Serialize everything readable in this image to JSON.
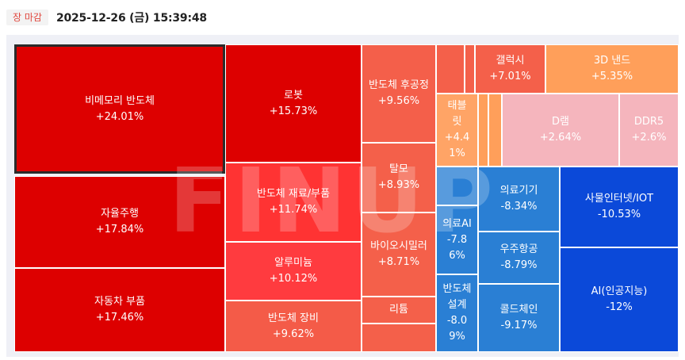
{
  "header": {
    "status_badge": "장 마감",
    "timestamp": "2025-12-26 (금) 15:39:48"
  },
  "watermark": "FINUP",
  "chart_data": {
    "type": "treemap",
    "tiles": [
      {
        "label": "비메모리 반도체",
        "value_text": "+24.01%",
        "change": 24.01,
        "color": "#dd0000",
        "selected": true
      },
      {
        "label": "자율주행",
        "value_text": "+17.84%",
        "change": 17.84,
        "color": "#dd0000"
      },
      {
        "label": "자동차 부품",
        "value_text": "+17.46%",
        "change": 17.46,
        "color": "#dd0000"
      },
      {
        "label": "로봇",
        "value_text": "+15.73%",
        "change": 15.73,
        "color": "#dd0000"
      },
      {
        "label": "반도체 재료/부품",
        "value_text": "+11.74%",
        "change": 11.74,
        "color": "#ff3333"
      },
      {
        "label": "알루미늄",
        "value_text": "+10.12%",
        "change": 10.12,
        "color": "#ff3b3f"
      },
      {
        "label": "반도체 장비",
        "value_text": "+9.62%",
        "change": 9.62,
        "color": "#f45b48"
      },
      {
        "label": "반도체 후공정",
        "value_text": "+9.56%",
        "change": 9.56,
        "color": "#f45f4a"
      },
      {
        "label": "탈모",
        "value_text": "+8.93%",
        "change": 8.93,
        "color": "#f4604a"
      },
      {
        "label": "바이오시밀러",
        "value_text": "+8.71%",
        "change": 8.71,
        "color": "#f4604a"
      },
      {
        "label": "리튬",
        "value_text": "",
        "color": "#f4604a"
      },
      {
        "label": "",
        "value_text": "",
        "color": "#f4604a"
      },
      {
        "label": "",
        "value_text": "",
        "color": "#f4604a"
      },
      {
        "label": "",
        "value_text": "",
        "color": "#f4604a"
      },
      {
        "label": "",
        "value_text": "",
        "color": "#f4604a"
      },
      {
        "label": "갤럭시",
        "value_text": "+7.01%",
        "change": 7.01,
        "color": "#f4604a"
      },
      {
        "label": "3D 낸드",
        "value_text": "+5.35%",
        "change": 5.35,
        "color": "#ff9f5a"
      },
      {
        "label": "태블\n릿",
        "value_text": "+4.4\n1%",
        "change": 4.41,
        "color": "#ffa466"
      },
      {
        "label": "",
        "value_text": "",
        "color": "#ff9f5a"
      },
      {
        "label": "",
        "value_text": "",
        "color": "#ff9f5a"
      },
      {
        "label": "D램",
        "value_text": "+2.64%",
        "change": 2.64,
        "color": "#f5b5bd"
      },
      {
        "label": "DDR5",
        "value_text": "+2.6%",
        "change": 2.6,
        "color": "#f5b5bd"
      },
      {
        "label": "",
        "value_text": "",
        "color": "#2a7fd4"
      },
      {
        "label": "",
        "value_text": "",
        "color": "#2a7fd4"
      },
      {
        "label": "의료AI",
        "value_text": "-7.8\n6%",
        "change": -7.86,
        "color": "#2a7fd4"
      },
      {
        "label": "반도체\n설계",
        "value_text": "-8.0\n9%",
        "change": -8.09,
        "color": "#2a7fd4"
      },
      {
        "label": "의료기기",
        "value_text": "-8.34%",
        "change": -8.34,
        "color": "#2a7fd4"
      },
      {
        "label": "우주항공",
        "value_text": "-8.79%",
        "change": -8.79,
        "color": "#2a7fd4"
      },
      {
        "label": "콜드체인",
        "value_text": "-9.17%",
        "change": -9.17,
        "color": "#2a7fd4"
      },
      {
        "label": "사물인터넷/IOT",
        "value_text": "-10.53%",
        "change": -10.53,
        "color": "#0b49d9"
      },
      {
        "label": "AI(인공지능)",
        "value_text": "-12%",
        "change": -12.0,
        "color": "#0b49d9"
      }
    ]
  }
}
